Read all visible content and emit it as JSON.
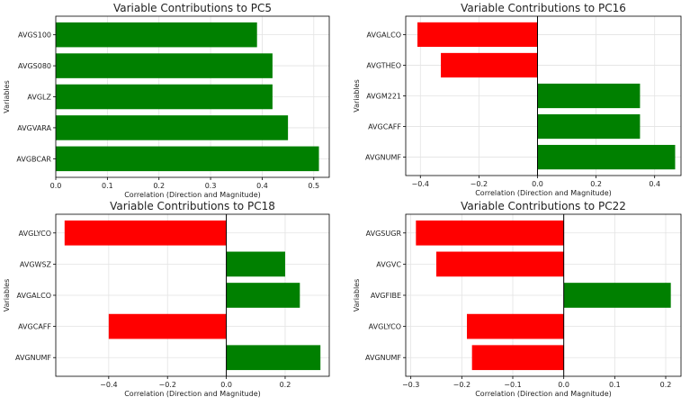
{
  "chart_data": [
    {
      "type": "bar",
      "orientation": "horizontal",
      "title": "Variable Contributions to PC5",
      "xlabel": "Correlation (Direction and Magnitude)",
      "ylabel": "Variables",
      "categories": [
        "AVGS100",
        "AVGS080",
        "AVGLZ",
        "AVGVARA",
        "AVGBCAR"
      ],
      "values": [
        0.39,
        0.42,
        0.42,
        0.45,
        0.51
      ],
      "xlim": [
        0.0,
        0.53
      ],
      "xticks": [
        "0.0",
        "0.1",
        "0.2",
        "0.3",
        "0.4",
        "0.5"
      ],
      "grid": true
    },
    {
      "type": "bar",
      "orientation": "horizontal",
      "title": "Variable Contributions to PC16",
      "xlabel": "Correlation (Direction and Magnitude)",
      "ylabel": "Variables",
      "categories": [
        "AVGALCO",
        "AVGTHEO",
        "AVGM221",
        "AVGCAFF",
        "AVGNUMF"
      ],
      "values": [
        -0.41,
        -0.33,
        0.35,
        0.35,
        0.47
      ],
      "xlim": [
        -0.45,
        0.49
      ],
      "xticks": [
        "−0.4",
        "−0.2",
        "0.0",
        "0.2",
        "0.4"
      ],
      "grid": true
    },
    {
      "type": "bar",
      "orientation": "horizontal",
      "title": "Variable Contributions to PC18",
      "xlabel": "Correlation (Direction and Magnitude)",
      "ylabel": "Variables",
      "categories": [
        "AVGLYCO",
        "AVGWSZ",
        "AVGALCO",
        "AVGCAFF",
        "AVGNUMF"
      ],
      "values": [
        -0.55,
        0.2,
        0.25,
        -0.4,
        0.32
      ],
      "xlim": [
        -0.58,
        0.35
      ],
      "xticks": [
        "−0.4",
        "−0.2",
        "0.0",
        "0.2"
      ],
      "grid": true
    },
    {
      "type": "bar",
      "orientation": "horizontal",
      "title": "Variable Contributions to PC22",
      "xlabel": "Correlation (Direction and Magnitude)",
      "ylabel": "Variables",
      "categories": [
        "AVGSUGR",
        "AVGVC",
        "AVGFIBE",
        "AVGLYCO",
        "AVGNUMF"
      ],
      "values": [
        -0.29,
        -0.25,
        0.21,
        -0.19,
        -0.18
      ],
      "xlim": [
        -0.31,
        0.23
      ],
      "xticks": [
        "−0.3",
        "−0.2",
        "−0.1",
        "0.0",
        "0.1",
        "0.2"
      ],
      "grid": true
    }
  ],
  "colors": {
    "positive": "#008000",
    "negative": "#ff0000",
    "grid": "#e3e3e3",
    "axis": "#000000"
  }
}
